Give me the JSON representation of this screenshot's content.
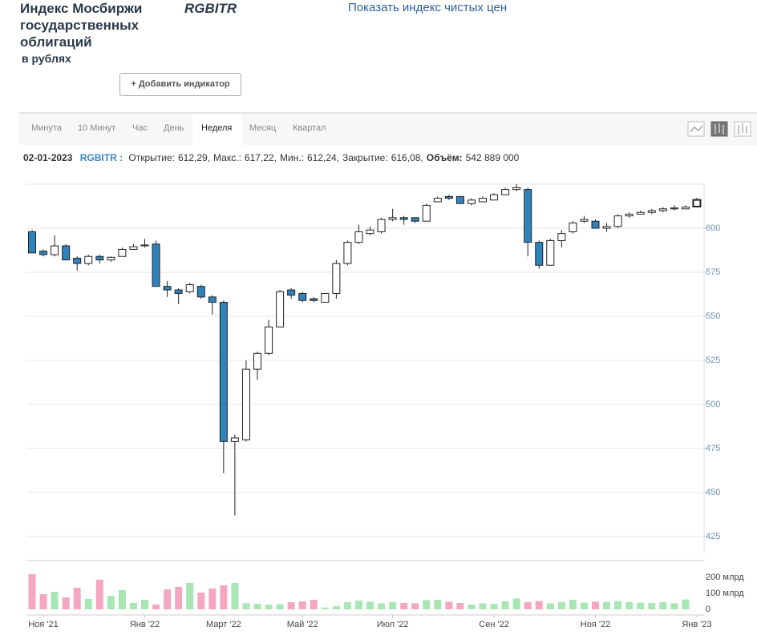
{
  "header": {
    "title": "Индекс Мосбиржи государственных облигаций",
    "subtitle": "в рублях",
    "ticker": "RGBITR",
    "link": "Показать индекс чистых цен",
    "button": "+ Добавить индикатор"
  },
  "tabs": {
    "items": [
      "Минута",
      "10 Минут",
      "Час",
      "День",
      "Неделя",
      "Месяц",
      "Квартал"
    ],
    "active": 4
  },
  "info": {
    "date": "02-01-2023",
    "ticker": "RGBITR :",
    "fields": [
      {
        "label": "Открытие:",
        "value": "612,29,"
      },
      {
        "label": "Макс.:",
        "value": "617,22,"
      },
      {
        "label": "Мин.:",
        "value": "612,24,"
      },
      {
        "label": "Закрытие:",
        "value": "616,08,"
      },
      {
        "label": "Объём:",
        "value": "542 889 000"
      }
    ]
  },
  "chart_data": {
    "type": "candlestick",
    "categories": [
      null,
      "Ноя '21",
      null,
      null,
      null,
      null,
      null,
      null,
      null,
      null,
      "Янв '22",
      null,
      null,
      null,
      null,
      null,
      null,
      "Март '22",
      null,
      null,
      null,
      null,
      null,
      null,
      "Май '22",
      null,
      null,
      null,
      null,
      null,
      null,
      null,
      "Июл '22",
      null,
      null,
      null,
      null,
      null,
      null,
      null,
      null,
      "Сен '22",
      null,
      null,
      null,
      null,
      null,
      null,
      null,
      null,
      "Ноя '22",
      null,
      null,
      null,
      null,
      null,
      null,
      null,
      null,
      "Янв '23"
    ],
    "series": [
      {
        "name": "RGBITR",
        "open": [
          598,
          587,
          585,
          590,
          583,
          580,
          584,
          582,
          584,
          588,
          590,
          591,
          567,
          565,
          564,
          567,
          561,
          558,
          479,
          480,
          520,
          529,
          544,
          565,
          563,
          560,
          558,
          563,
          580,
          592,
          597,
          598,
          605,
          606,
          606,
          604,
          615,
          618,
          618,
          614,
          615,
          616,
          619,
          622,
          622,
          592,
          579,
          593,
          598,
          604,
          604,
          600,
          601,
          607,
          608,
          609,
          610,
          611,
          611,
          612.29
        ],
        "high": [
          599,
          588,
          596,
          591,
          584,
          585,
          585,
          584,
          589,
          591,
          594,
          593,
          570,
          566,
          569,
          568,
          562,
          559,
          483,
          525,
          530,
          548,
          565,
          566,
          564,
          561,
          563,
          582,
          593,
          602,
          601,
          606,
          611,
          607,
          606,
          614,
          618,
          619,
          618,
          617,
          618,
          620,
          623,
          625,
          623,
          593,
          594,
          599,
          604,
          607,
          605,
          603,
          608,
          609,
          610,
          611,
          612,
          613,
          613,
          617.22
        ],
        "low": [
          586,
          584,
          584,
          582,
          576,
          579,
          580,
          581,
          584,
          588,
          589,
          567,
          561,
          557,
          563,
          560,
          551,
          461,
          437,
          479,
          514,
          528,
          544,
          560,
          558,
          558,
          558,
          560,
          579,
          591,
          596,
          597,
          604,
          602,
          603,
          604,
          615,
          616,
          614,
          613,
          615,
          616,
          619,
          621,
          584,
          577,
          579,
          589,
          597,
          603,
          600,
          598,
          600,
          606,
          608,
          608,
          609,
          610,
          611,
          612.24
        ],
        "close": [
          586,
          585,
          590,
          582,
          580,
          584,
          582,
          583.5,
          588,
          589.5,
          590.5,
          567,
          565,
          563,
          568,
          561,
          558,
          479,
          481,
          520,
          529,
          544,
          564,
          562,
          559,
          559,
          563,
          580,
          592,
          598,
          599,
          605,
          606,
          605,
          604,
          613,
          617,
          617,
          614,
          616,
          617,
          619,
          622,
          623,
          592,
          579,
          593,
          597,
          603,
          605,
          600,
          601,
          607,
          608,
          609,
          610,
          611,
          611.5,
          612,
          616.08
        ]
      }
    ],
    "up_color": "#ffffff",
    "down_color": "#2f83bd",
    "ylim": [
      416,
      625
    ],
    "yticks": [
      425,
      450,
      475,
      500,
      525,
      550,
      575,
      600
    ],
    "grid": true,
    "volume": {
      "values": [
        220,
        95,
        110,
        75,
        135,
        65,
        185,
        85,
        120,
        40,
        60,
        30,
        125,
        140,
        165,
        105,
        130,
        150,
        165,
        38,
        35,
        30,
        32,
        45,
        50,
        60,
        12,
        20,
        45,
        55,
        48,
        38,
        45,
        40,
        38,
        58,
        60,
        48,
        40,
        30,
        38,
        35,
        50,
        68,
        45,
        52,
        38,
        45,
        60,
        42,
        48,
        45,
        52,
        46,
        42,
        40,
        45,
        38,
        62,
        0.54
      ],
      "up_color": "#a8e6b4",
      "down_color": "#f4a7bf",
      "ylim": [
        0,
        300
      ],
      "yticks": [
        0,
        {
          "value": 100,
          "label": "100 млрд"
        },
        {
          "value": 200,
          "label": "200 млрд"
        }
      ]
    }
  }
}
